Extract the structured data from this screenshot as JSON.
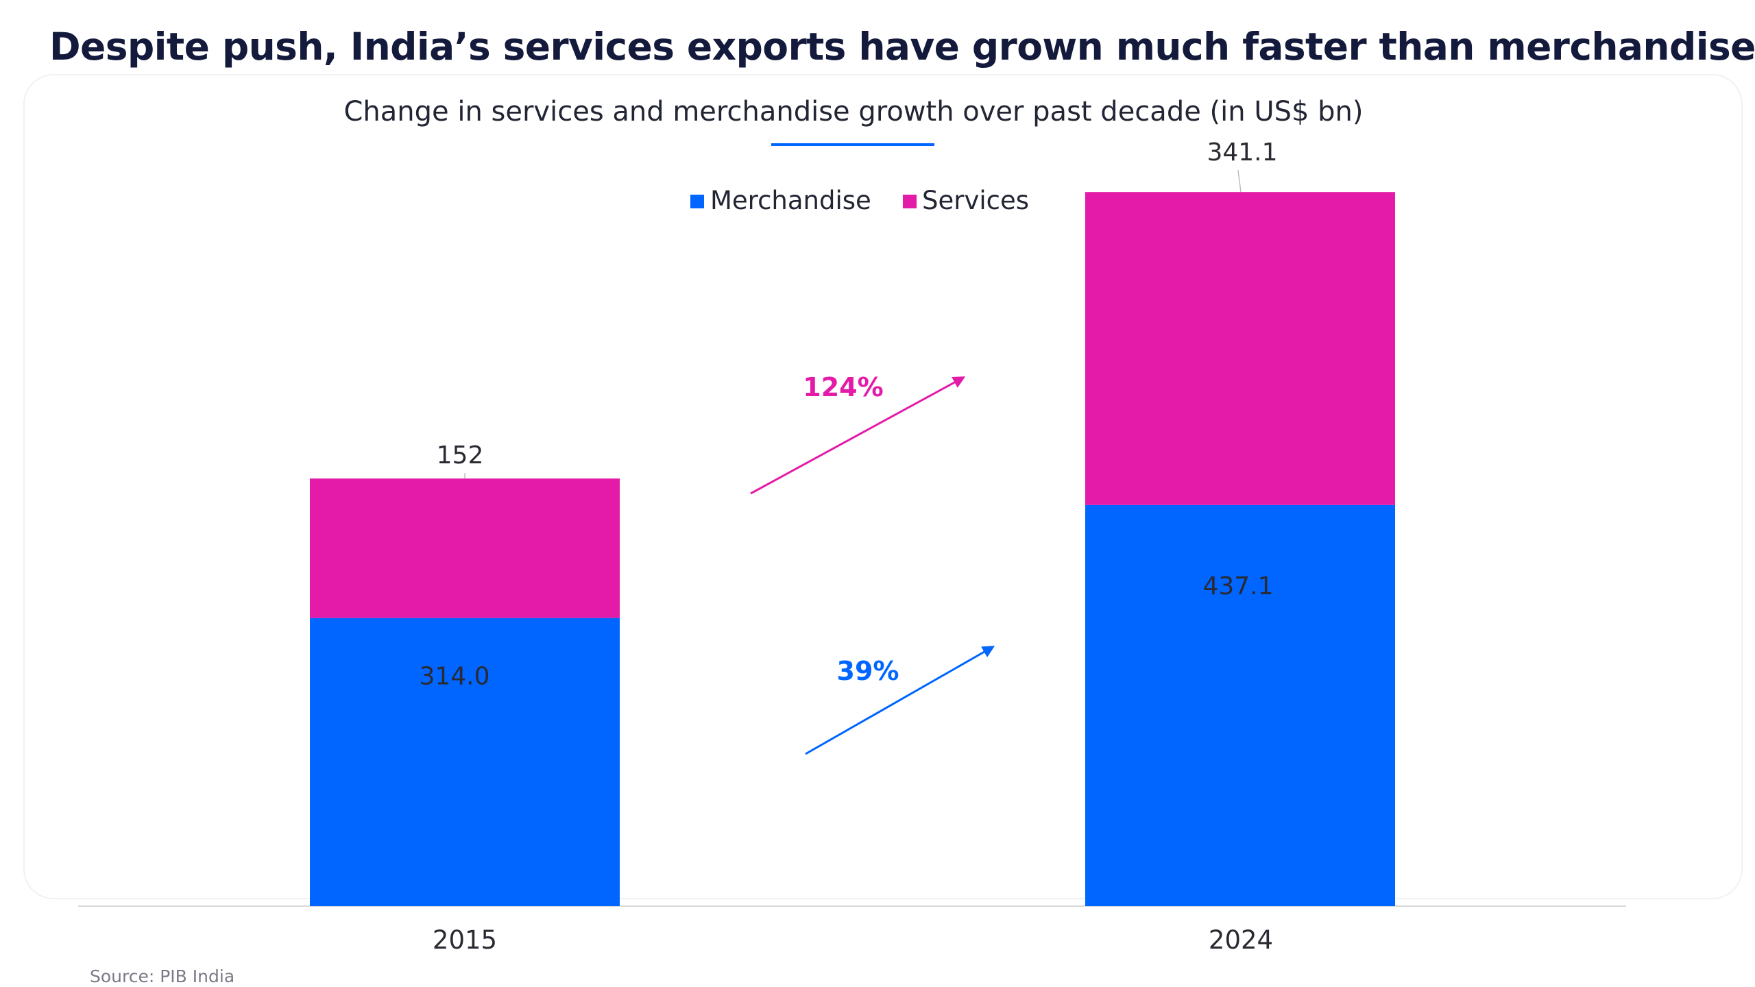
{
  "page": {
    "title": "Despite push, India’s services exports have grown much faster than merchandise",
    "source": "Source: PIB India"
  },
  "chart_data": {
    "type": "bar",
    "stacked": true,
    "title": "Change in services and merchandise growth over past decade (in US$ bn)",
    "categories": [
      "2015",
      "2024"
    ],
    "series": [
      {
        "name": "Merchandise",
        "color": "#0066ff",
        "values": [
          314.0,
          437.1
        ],
        "labels": [
          "314.0",
          "437.1"
        ]
      },
      {
        "name": "Services",
        "color": "#e41ba8",
        "values": [
          152,
          341.1
        ],
        "labels": [
          "152",
          "341.1"
        ]
      }
    ],
    "legend_position": "top",
    "grid": false,
    "axis_color": "#d9d9d9",
    "ylim": [
      0,
      800
    ],
    "annotations": [
      {
        "text": "124%",
        "series": "Services",
        "color": "#e41ba8"
      },
      {
        "text": "39%",
        "series": "Merchandise",
        "color": "#0066ff"
      }
    ]
  }
}
